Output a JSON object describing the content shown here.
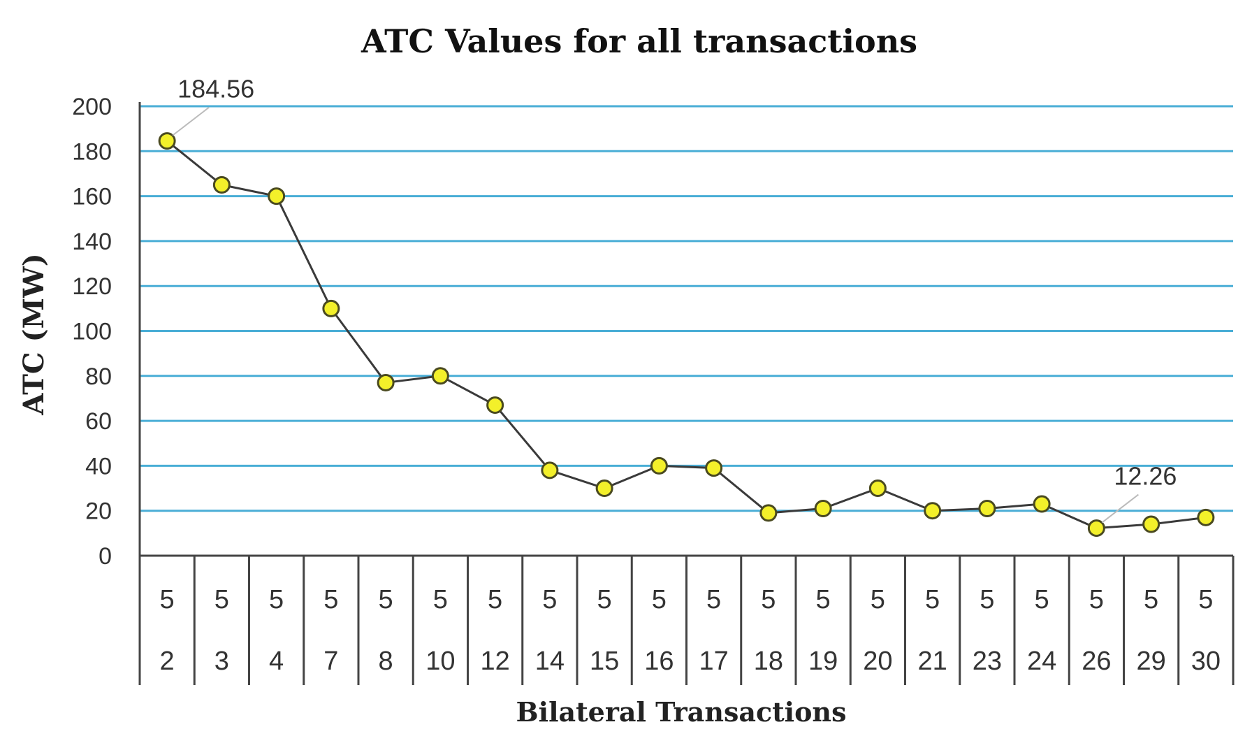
{
  "chart_data": {
    "type": "line",
    "title": "ATC Values for all transactions",
    "xlabel": "Bilateral Transactions",
    "ylabel": "ATC (MW)",
    "ylim": [
      0,
      200
    ],
    "yticks": [
      0,
      20,
      40,
      60,
      80,
      100,
      120,
      140,
      160,
      180,
      200
    ],
    "grid": true,
    "legend": "none",
    "categories": [
      [
        "5",
        "2"
      ],
      [
        "5",
        "3"
      ],
      [
        "5",
        "4"
      ],
      [
        "5",
        "7"
      ],
      [
        "5",
        "8"
      ],
      [
        "5",
        "10"
      ],
      [
        "5",
        "12"
      ],
      [
        "5",
        "14"
      ],
      [
        "5",
        "15"
      ],
      [
        "5",
        "16"
      ],
      [
        "5",
        "17"
      ],
      [
        "5",
        "18"
      ],
      [
        "5",
        "19"
      ],
      [
        "5",
        "20"
      ],
      [
        "5",
        "21"
      ],
      [
        "5",
        "23"
      ],
      [
        "5",
        "24"
      ],
      [
        "5",
        "26"
      ],
      [
        "5",
        "29"
      ],
      [
        "5",
        "30"
      ]
    ],
    "series": [
      {
        "values": [
          184.56,
          165,
          160,
          110,
          77,
          80,
          67,
          38,
          30,
          40,
          39,
          19,
          21,
          30,
          20,
          21,
          23,
          12.26,
          14,
          17
        ]
      }
    ],
    "annotations": [
      {
        "index": 0,
        "text": "184.56"
      },
      {
        "index": 17,
        "text": "12.26"
      }
    ],
    "colors": {
      "grid": "#4aaed6",
      "line": "#3a3a3a",
      "marker_fill": "#f3f02a",
      "marker_stroke": "#4a4a20",
      "axis": "#444444"
    }
  }
}
